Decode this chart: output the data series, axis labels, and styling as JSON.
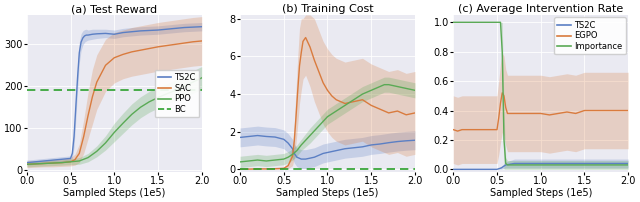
{
  "fig_width": 6.4,
  "fig_height": 2.02,
  "dpi": 100,
  "background_color": "#eaeaf2",
  "titles": [
    "(a) Test Reward",
    "(b) Training Cost",
    "(c) Average Intervention Rate"
  ],
  "xlabel": "Sampled Steps (1e5)",
  "panel_a": {
    "xlim": [
      0,
      2.0
    ],
    "ylim": [
      -5,
      370
    ],
    "yticks": [
      0,
      100,
      200,
      300
    ],
    "xticks": [
      0,
      0.5,
      1.0,
      1.5,
      2.0
    ],
    "bc_level": 190,
    "colors": {
      "TS2C": "#5b7fc4",
      "SAC": "#d97b3e",
      "PPO": "#5aaa55",
      "BC": "#2ca02c"
    },
    "legend_loc": "center right",
    "series": {
      "TS2C": {
        "x": [
          0.0,
          0.05,
          0.1,
          0.15,
          0.2,
          0.25,
          0.3,
          0.35,
          0.4,
          0.45,
          0.5,
          0.52,
          0.54,
          0.56,
          0.58,
          0.6,
          0.62,
          0.64,
          0.66,
          0.68,
          0.7,
          0.75,
          0.8,
          0.9,
          1.0,
          1.1,
          1.2,
          1.3,
          1.4,
          1.5,
          1.6,
          1.7,
          1.8,
          1.9,
          2.0
        ],
        "y": [
          18,
          19,
          20,
          21,
          22,
          23,
          24,
          25,
          26,
          27,
          28,
          40,
          80,
          150,
          220,
          280,
          305,
          315,
          320,
          322,
          322,
          324,
          325,
          326,
          324,
          328,
          330,
          332,
          333,
          334,
          336,
          338,
          340,
          341,
          342
        ],
        "y_low": [
          12,
          13,
          14,
          15,
          16,
          17,
          18,
          19,
          20,
          21,
          22,
          28,
          55,
          120,
          190,
          255,
          285,
          298,
          305,
          308,
          310,
          312,
          314,
          316,
          314,
          318,
          320,
          322,
          323,
          324,
          326,
          328,
          330,
          331,
          332
        ],
        "y_high": [
          24,
          25,
          26,
          27,
          28,
          29,
          30,
          31,
          32,
          33,
          34,
          52,
          105,
          180,
          250,
          305,
          325,
          332,
          335,
          336,
          334,
          336,
          336,
          336,
          334,
          338,
          340,
          342,
          343,
          344,
          346,
          348,
          350,
          351,
          352
        ]
      },
      "SAC": {
        "x": [
          0.0,
          0.1,
          0.2,
          0.3,
          0.4,
          0.5,
          0.55,
          0.6,
          0.65,
          0.7,
          0.75,
          0.8,
          0.9,
          1.0,
          1.1,
          1.2,
          1.3,
          1.4,
          1.5,
          1.6,
          1.7,
          1.8,
          1.9,
          2.0
        ],
        "y": [
          14,
          15,
          16,
          17,
          18,
          20,
          25,
          40,
          80,
          130,
          175,
          210,
          250,
          268,
          276,
          282,
          286,
          290,
          294,
          297,
          300,
          303,
          306,
          308
        ],
        "y_low": [
          6,
          7,
          8,
          8,
          9,
          10,
          12,
          18,
          40,
          75,
          110,
          145,
          188,
          208,
          218,
          224,
          228,
          232,
          236,
          239,
          242,
          245,
          248,
          250
        ],
        "y_high": [
          22,
          23,
          24,
          26,
          27,
          30,
          38,
          62,
          120,
          185,
          240,
          275,
          312,
          328,
          334,
          340,
          344,
          348,
          352,
          355,
          358,
          361,
          364,
          366
        ]
      },
      "PPO": {
        "x": [
          0.0,
          0.1,
          0.2,
          0.3,
          0.4,
          0.5,
          0.6,
          0.7,
          0.8,
          0.9,
          1.0,
          1.1,
          1.2,
          1.3,
          1.4,
          1.5,
          1.6,
          1.7,
          1.8,
          1.9,
          2.0
        ],
        "y": [
          14,
          15,
          16,
          17,
          18,
          20,
          22,
          30,
          45,
          65,
          90,
          112,
          133,
          150,
          163,
          173,
          182,
          190,
          200,
          210,
          220
        ],
        "y_low": [
          8,
          9,
          10,
          11,
          12,
          13,
          14,
          20,
          32,
          48,
          68,
          88,
          108,
          125,
          138,
          148,
          158,
          165,
          174,
          183,
          193
        ],
        "y_high": [
          20,
          21,
          22,
          23,
          24,
          27,
          30,
          40,
          58,
          82,
          112,
          136,
          158,
          175,
          188,
          198,
          206,
          215,
          226,
          237,
          247
        ]
      }
    }
  },
  "panel_b": {
    "xlim": [
      0,
      2.0
    ],
    "ylim": [
      -0.15,
      8.2
    ],
    "yticks": [
      0,
      2,
      4,
      6,
      8
    ],
    "xticks": [
      0,
      0.5,
      1.0,
      1.5,
      2.0
    ],
    "bc_level": 0,
    "colors": {
      "TS2C": "#5b7fc4",
      "SAC": "#d97b3e",
      "PPO": "#5aaa55",
      "BC": "#2ca02c"
    },
    "series": {
      "TS2C": {
        "x": [
          0.0,
          0.1,
          0.2,
          0.3,
          0.4,
          0.5,
          0.55,
          0.6,
          0.62,
          0.65,
          0.7,
          0.75,
          0.8,
          0.85,
          0.9,
          0.95,
          1.0,
          1.1,
          1.2,
          1.3,
          1.4,
          1.5,
          1.6,
          1.7,
          1.8,
          1.9,
          2.0
        ],
        "y": [
          1.7,
          1.75,
          1.8,
          1.75,
          1.72,
          1.6,
          1.4,
          1.1,
          0.85,
          0.65,
          0.55,
          0.55,
          0.6,
          0.65,
          0.75,
          0.85,
          0.9,
          1.0,
          1.1,
          1.15,
          1.2,
          1.3,
          1.35,
          1.42,
          1.48,
          1.52,
          1.55
        ],
        "y_low": [
          1.2,
          1.25,
          1.3,
          1.25,
          1.22,
          1.1,
          0.9,
          0.6,
          0.35,
          0.15,
          0.05,
          0.05,
          0.1,
          0.15,
          0.25,
          0.35,
          0.4,
          0.5,
          0.6,
          0.65,
          0.7,
          0.8,
          0.85,
          0.92,
          0.98,
          1.02,
          1.05
        ],
        "y_high": [
          2.2,
          2.25,
          2.3,
          2.25,
          2.22,
          2.1,
          1.9,
          1.6,
          1.35,
          1.15,
          1.05,
          1.05,
          1.1,
          1.15,
          1.25,
          1.35,
          1.4,
          1.5,
          1.6,
          1.65,
          1.7,
          1.8,
          1.85,
          1.92,
          1.98,
          2.02,
          2.05
        ]
      },
      "SAC": {
        "x": [
          0.0,
          0.1,
          0.2,
          0.3,
          0.4,
          0.5,
          0.55,
          0.6,
          0.62,
          0.64,
          0.66,
          0.68,
          0.7,
          0.72,
          0.75,
          0.8,
          0.85,
          0.9,
          0.95,
          1.0,
          1.05,
          1.1,
          1.2,
          1.3,
          1.4,
          1.5,
          1.6,
          1.7,
          1.8,
          1.9,
          2.0
        ],
        "y": [
          0.02,
          0.02,
          0.03,
          0.03,
          0.04,
          0.06,
          0.2,
          0.7,
          1.5,
          2.8,
          4.2,
          5.5,
          6.2,
          6.8,
          7.0,
          6.5,
          5.8,
          5.2,
          4.6,
          4.2,
          3.9,
          3.7,
          3.5,
          3.6,
          3.7,
          3.4,
          3.2,
          3.0,
          3.1,
          2.9,
          3.0
        ],
        "y_low": [
          0.0,
          0.0,
          0.0,
          0.0,
          0.0,
          0.0,
          0.05,
          0.2,
          0.6,
          1.4,
          2.4,
          3.5,
          4.2,
          4.8,
          5.0,
          4.4,
          3.6,
          3.0,
          2.4,
          2.0,
          1.7,
          1.5,
          1.3,
          1.4,
          1.5,
          1.2,
          1.0,
          0.8,
          0.9,
          0.7,
          0.8
        ],
        "y_high": [
          0.04,
          0.04,
          0.06,
          0.06,
          0.08,
          0.12,
          0.35,
          1.2,
          2.4,
          4.2,
          6.0,
          7.5,
          8.0,
          8.0,
          9.0,
          8.5,
          8.0,
          7.4,
          6.8,
          6.4,
          6.1,
          5.9,
          5.7,
          5.8,
          5.9,
          5.6,
          5.4,
          5.2,
          5.3,
          5.1,
          5.2
        ],
        "y_high_clamp": 8.2
      },
      "PPO": {
        "x": [
          0.0,
          0.1,
          0.2,
          0.3,
          0.4,
          0.5,
          0.55,
          0.6,
          0.65,
          0.7,
          0.8,
          0.9,
          1.0,
          1.1,
          1.2,
          1.3,
          1.4,
          1.5,
          1.6,
          1.65,
          1.7,
          1.8,
          1.9,
          2.0
        ],
        "y": [
          0.4,
          0.45,
          0.5,
          0.45,
          0.5,
          0.55,
          0.65,
          0.8,
          1.0,
          1.3,
          1.8,
          2.3,
          2.8,
          3.1,
          3.4,
          3.7,
          4.0,
          4.2,
          4.4,
          4.5,
          4.5,
          4.4,
          4.3,
          4.2
        ],
        "y_low": [
          0.1,
          0.15,
          0.2,
          0.15,
          0.2,
          0.25,
          0.35,
          0.5,
          0.7,
          1.0,
          1.4,
          1.9,
          2.4,
          2.7,
          3.0,
          3.3,
          3.6,
          3.8,
          4.0,
          4.1,
          4.1,
          4.0,
          3.9,
          3.8
        ],
        "y_high": [
          0.7,
          0.75,
          0.8,
          0.75,
          0.8,
          0.85,
          0.95,
          1.1,
          1.3,
          1.6,
          2.2,
          2.7,
          3.2,
          3.5,
          3.8,
          4.1,
          4.4,
          4.6,
          4.8,
          4.9,
          4.9,
          4.8,
          4.7,
          4.6
        ]
      }
    }
  },
  "panel_c": {
    "xlim": [
      0,
      2.0
    ],
    "ylim": [
      -0.02,
      1.05
    ],
    "yticks": [
      0.0,
      0.2,
      0.4,
      0.6,
      0.8,
      1.0
    ],
    "xticks": [
      0,
      0.5,
      1.0,
      1.5,
      2.0
    ],
    "colors": {
      "TS2C": "#5b7fc4",
      "EGPO": "#d97b3e",
      "Importance": "#5aaa55"
    },
    "legend_loc": "upper right",
    "series": {
      "TS2C": {
        "x": [
          0.0,
          0.4,
          0.5,
          0.55,
          0.6,
          0.7,
          0.8,
          0.9,
          1.0,
          1.2,
          1.4,
          1.6,
          1.8,
          2.0
        ],
        "y": [
          0.0,
          0.0,
          0.0,
          0.01,
          0.03,
          0.04,
          0.04,
          0.04,
          0.04,
          0.04,
          0.04,
          0.04,
          0.04,
          0.04
        ],
        "y_low": [
          0.0,
          0.0,
          0.0,
          0.0,
          0.01,
          0.01,
          0.01,
          0.01,
          0.01,
          0.01,
          0.01,
          0.01,
          0.01,
          0.01
        ],
        "y_high": [
          0.0,
          0.0,
          0.0,
          0.02,
          0.05,
          0.07,
          0.07,
          0.07,
          0.07,
          0.07,
          0.07,
          0.07,
          0.07,
          0.07
        ]
      },
      "EGPO": {
        "x": [
          0.0,
          0.05,
          0.1,
          0.2,
          0.3,
          0.4,
          0.45,
          0.5,
          0.52,
          0.54,
          0.56,
          0.58,
          0.6,
          0.62,
          0.65,
          0.7,
          0.8,
          0.9,
          1.0,
          1.1,
          1.2,
          1.3,
          1.4,
          1.5,
          1.6,
          1.7,
          1.8,
          1.9,
          2.0
        ],
        "y": [
          0.27,
          0.26,
          0.27,
          0.27,
          0.27,
          0.27,
          0.27,
          0.27,
          0.35,
          0.45,
          0.52,
          0.5,
          0.42,
          0.38,
          0.38,
          0.38,
          0.38,
          0.38,
          0.38,
          0.37,
          0.38,
          0.39,
          0.38,
          0.4,
          0.4,
          0.4,
          0.4,
          0.4,
          0.4
        ],
        "y_low": [
          0.04,
          0.03,
          0.04,
          0.04,
          0.04,
          0.04,
          0.04,
          0.04,
          0.1,
          0.18,
          0.25,
          0.23,
          0.16,
          0.12,
          0.12,
          0.12,
          0.12,
          0.12,
          0.12,
          0.11,
          0.12,
          0.13,
          0.12,
          0.14,
          0.14,
          0.14,
          0.14,
          0.14,
          0.14
        ],
        "y_high": [
          0.5,
          0.49,
          0.5,
          0.5,
          0.5,
          0.5,
          0.5,
          0.5,
          0.6,
          0.72,
          0.79,
          0.77,
          0.68,
          0.64,
          0.64,
          0.64,
          0.64,
          0.64,
          0.64,
          0.63,
          0.64,
          0.65,
          0.64,
          0.66,
          0.66,
          0.66,
          0.66,
          0.66,
          0.66
        ]
      },
      "Importance": {
        "x": [
          0.0,
          0.1,
          0.2,
          0.3,
          0.4,
          0.45,
          0.5,
          0.52,
          0.54,
          0.56,
          0.58,
          0.6,
          0.62,
          0.65,
          0.7,
          0.8,
          1.0,
          1.5,
          2.0
        ],
        "y": [
          1.0,
          1.0,
          1.0,
          1.0,
          1.0,
          1.0,
          1.0,
          1.0,
          1.0,
          0.8,
          0.2,
          0.04,
          0.03,
          0.03,
          0.03,
          0.03,
          0.03,
          0.03,
          0.03
        ],
        "y_low": [
          1.0,
          1.0,
          1.0,
          1.0,
          1.0,
          1.0,
          1.0,
          1.0,
          1.0,
          0.6,
          0.0,
          0.0,
          0.0,
          0.0,
          0.0,
          0.0,
          0.0,
          0.0,
          0.0
        ],
        "y_high": [
          1.0,
          1.0,
          1.0,
          1.0,
          1.0,
          1.0,
          1.0,
          1.0,
          1.0,
          1.0,
          0.4,
          0.08,
          0.06,
          0.06,
          0.06,
          0.06,
          0.06,
          0.06,
          0.06
        ]
      }
    }
  }
}
